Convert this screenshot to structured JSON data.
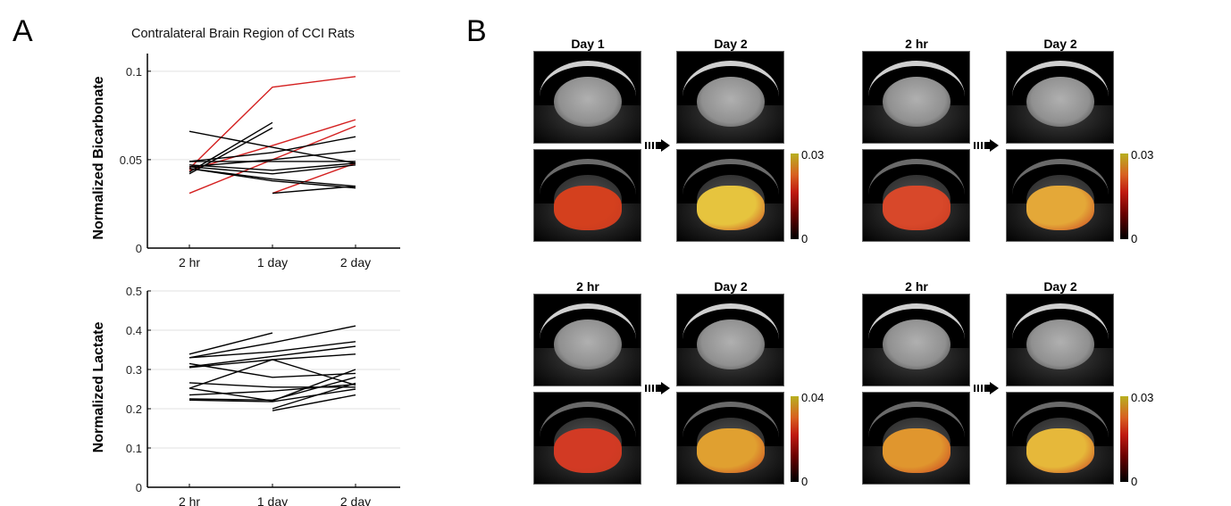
{
  "panel_a": {
    "label": "A",
    "title": "Contralateral Brain Region of CCI Rats"
  },
  "panel_b": {
    "label": "B",
    "groups": [
      {
        "before": "Day 1",
        "after": "Day 2",
        "cbar_max": "0.03",
        "cbar_min": "0",
        "before_color": "#d4401e",
        "after_color": "#e6c43e"
      },
      {
        "before": "2 hr",
        "after": "Day 2",
        "cbar_max": "0.03",
        "cbar_min": "0",
        "before_color": "#d8482a",
        "after_color": "#e4a838"
      },
      {
        "before": "2 hr",
        "after": "Day 2",
        "cbar_max": "0.04",
        "cbar_min": "0",
        "before_color": "#d23a24",
        "after_color": "#e0a030"
      },
      {
        "before": "2 hr",
        "after": "Day 2",
        "cbar_max": "0.03",
        "cbar_min": "0",
        "before_color": "#e0962e",
        "after_color": "#e6b83a"
      }
    ],
    "colormap": [
      "#000000",
      "#6a0000",
      "#c01a10",
      "#d86020",
      "#b8b020"
    ]
  },
  "chart_data": [
    {
      "type": "line",
      "title": "Contralateral Brain Region of CCI Rats",
      "ylabel": "Normalized Bicarbonate",
      "categories": [
        "2 hr",
        "1 day",
        "2 day"
      ],
      "ylim": [
        0,
        0.11
      ],
      "yticks": [
        "0",
        "0.05",
        "0.1"
      ],
      "ytick_values": [
        0,
        0.05,
        0.1
      ],
      "grid": "horizontal",
      "series": [
        {
          "color": "#d42020",
          "values": [
            0.045,
            0.091,
            0.097
          ]
        },
        {
          "color": "#d42020",
          "values": [
            0.044,
            0.058,
            0.0726
          ]
        },
        {
          "color": "#d42020",
          "values": [
            0.031,
            0.05,
            0.069
          ]
        },
        {
          "color": "#d42020",
          "values": [
            null,
            0.031,
            0.048
          ]
        },
        {
          "color": "#000000",
          "values": [
            0.043,
            0.071,
            null
          ]
        },
        {
          "color": "#000000",
          "values": [
            0.042,
            0.068,
            null
          ]
        },
        {
          "color": "#000000",
          "values": [
            0.066,
            0.057,
            0.048
          ]
        },
        {
          "color": "#000000",
          "values": [
            0.049,
            0.054,
            0.063
          ]
        },
        {
          "color": "#000000",
          "values": [
            0.046,
            0.05,
            0.055
          ]
        },
        {
          "color": "#000000",
          "values": [
            0.049,
            0.049,
            0.049
          ]
        },
        {
          "color": "#000000",
          "values": [
            0.047,
            0.044,
            0.048
          ]
        },
        {
          "color": "#000000",
          "values": [
            0.046,
            0.042,
            0.047
          ]
        },
        {
          "color": "#000000",
          "values": [
            0.045,
            0.039,
            0.035
          ]
        },
        {
          "color": "#000000",
          "values": [
            0.045,
            0.038,
            0.034
          ]
        },
        {
          "color": "#000000",
          "values": [
            null,
            0.031,
            0.035
          ]
        }
      ]
    },
    {
      "type": "line",
      "ylabel": "Normalized Lactate",
      "categories": [
        "2 hr",
        "1 day",
        "2 day"
      ],
      "ylim": [
        0,
        0.5
      ],
      "yticks": [
        "0",
        "0.1",
        "0.2",
        "0.3",
        "0.4",
        "0.5"
      ],
      "ytick_values": [
        0,
        0.1,
        0.2,
        0.3,
        0.4,
        0.5
      ],
      "grid": "horizontal",
      "series": [
        {
          "color": "#000000",
          "values": [
            0.339,
            0.393,
            null
          ]
        },
        {
          "color": "#000000",
          "values": [
            0.33,
            0.368,
            0.411
          ]
        },
        {
          "color": "#000000",
          "values": [
            0.33,
            0.345,
            0.371
          ]
        },
        {
          "color": "#000000",
          "values": [
            0.305,
            0.325,
            0.339
          ]
        },
        {
          "color": "#000000",
          "values": [
            0.307,
            0.333,
            0.359
          ]
        },
        {
          "color": "#000000",
          "values": [
            0.315,
            0.28,
            0.29
          ]
        },
        {
          "color": "#000000",
          "values": [
            0.252,
            0.325,
            0.26
          ]
        },
        {
          "color": "#000000",
          "values": [
            0.266,
            0.255,
            0.255
          ]
        },
        {
          "color": "#000000",
          "values": [
            0.252,
            0.22,
            0.3
          ]
        },
        {
          "color": "#000000",
          "values": [
            0.235,
            0.245,
            0.262
          ]
        },
        {
          "color": "#000000",
          "values": [
            0.225,
            0.222,
            0.28
          ]
        },
        {
          "color": "#000000",
          "values": [
            0.222,
            0.218,
            0.25
          ]
        },
        {
          "color": "#000000",
          "values": [
            null,
            0.2,
            0.265
          ]
        },
        {
          "color": "#000000",
          "values": [
            null,
            0.195,
            0.235
          ]
        }
      ]
    }
  ]
}
